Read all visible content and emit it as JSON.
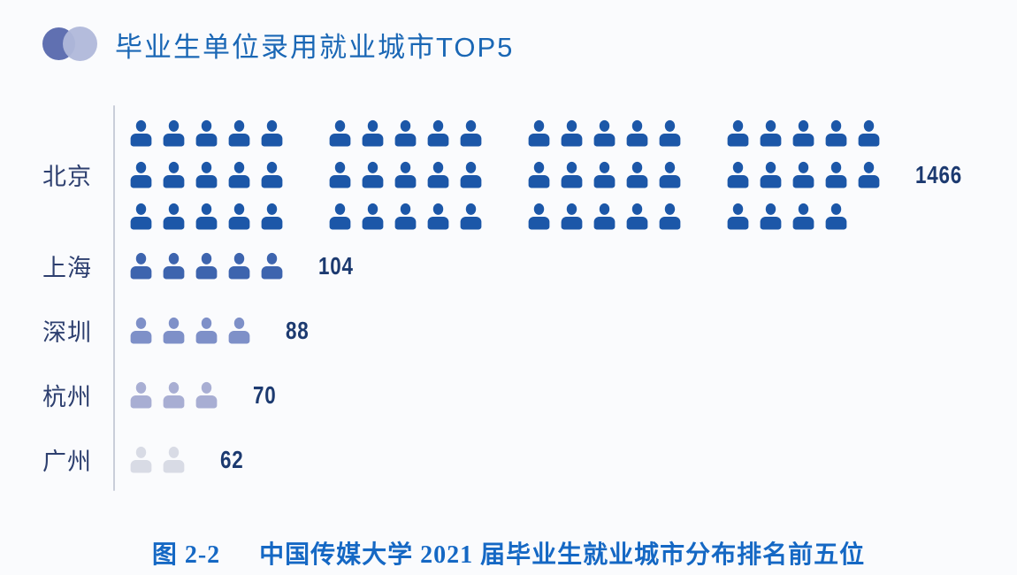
{
  "header": {
    "title": "毕业生单位录用就业城市TOP5",
    "logo_icon": "two-overlapping-circles",
    "logo_colors": {
      "left_circle": "#6070b1",
      "right_circle": "#b0b8da"
    }
  },
  "caption": {
    "figure_label": "图 2-2",
    "text": "中国传媒大学 2021 届毕业生就业城市分布排名前五位"
  },
  "colors": {
    "background": "#fafbfd",
    "title_text": "#1a67b5",
    "city_text": "#2d3f6f",
    "value_text": "#1c3a70",
    "caption_text": "#1568c4",
    "axis_line": "#c9ced9"
  },
  "chart_data": {
    "type": "pictogram",
    "title": "毕业生单位录用就业城市TOP5",
    "orientation": "horizontal-rows",
    "legend": "none",
    "categories": [
      "北京",
      "上海",
      "深圳",
      "杭州",
      "广州"
    ],
    "values": [
      1466,
      104,
      88,
      70,
      62
    ],
    "icon_counts": [
      59,
      5,
      4,
      3,
      2
    ],
    "icon_glyph": "person",
    "rows": [
      {
        "city": "北京",
        "value": "1466",
        "color": "#1c57a8",
        "icon_rows": [
          [
            5,
            5,
            5,
            5
          ],
          [
            5,
            5,
            5,
            5
          ],
          [
            5,
            5,
            5,
            4
          ]
        ]
      },
      {
        "city": "上海",
        "value": "104",
        "color": "#3d64ae",
        "icon_rows": [
          [
            5
          ]
        ]
      },
      {
        "city": "深圳",
        "value": "88",
        "color": "#7e90c8",
        "icon_rows": [
          [
            4
          ]
        ]
      },
      {
        "city": "杭州",
        "value": "70",
        "color": "#a8aed3",
        "icon_rows": [
          [
            3
          ]
        ]
      },
      {
        "city": "广州",
        "value": "62",
        "color": "#d8dbe5",
        "icon_rows": [
          [
            2
          ]
        ]
      }
    ]
  }
}
